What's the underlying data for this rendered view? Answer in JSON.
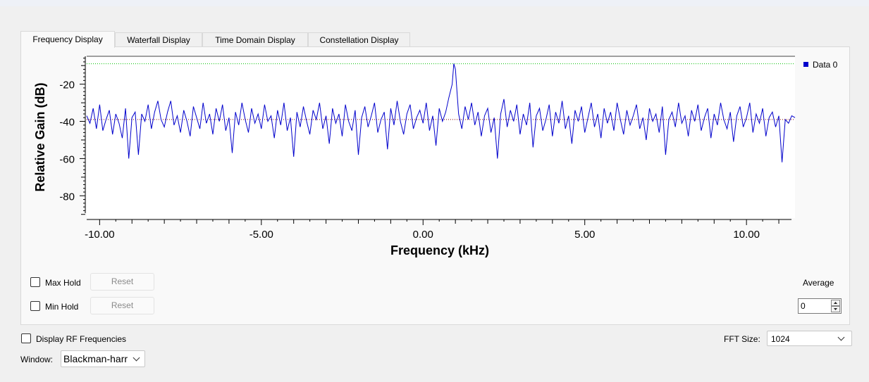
{
  "tabs": [
    {
      "label": "Frequency Display",
      "active": true
    },
    {
      "label": "Waterfall Display",
      "active": false
    },
    {
      "label": "Time Domain Display",
      "active": false
    },
    {
      "label": "Constellation Display",
      "active": false
    }
  ],
  "controls": {
    "max_hold_label": "Max Hold",
    "min_hold_label": "Min Hold",
    "reset_label": "Reset",
    "average_label": "Average",
    "average_value": "0",
    "display_rf_label": "Display RF Frequencies",
    "fft_size_label": "FFT Size:",
    "fft_size_value": "1024",
    "window_label": "Window:",
    "window_value": "Blackman-harr"
  },
  "chart_data": {
    "type": "line",
    "title": "",
    "xlabel": "Frequency (kHz)",
    "ylabel": "Relative Gain (dB)",
    "xlim": [
      -10.4,
      11.5
    ],
    "ylim": [
      -92,
      -5
    ],
    "xticks": [
      "-10.00",
      "-5.00",
      "0.00",
      "5.00",
      "10.00"
    ],
    "xtick_values": [
      -10,
      -5,
      0,
      5,
      10
    ],
    "yticks": [
      "-20",
      "-40",
      "-60",
      "-80"
    ],
    "ytick_values": [
      -20,
      -40,
      -60,
      -80
    ],
    "legend_position": "right",
    "grid": false,
    "series": [
      {
        "name": "Data 0",
        "color": "#0000cc",
        "noise_floor_db": -40,
        "noise_range_db": [
          -62,
          -28
        ],
        "peak": {
          "x": 1.0,
          "y": -9
        },
        "points": [
          [
            -10.4,
            -37
          ],
          [
            -10.3,
            -41
          ],
          [
            -10.2,
            -33
          ],
          [
            -10.1,
            -44
          ],
          [
            -10.0,
            -31
          ],
          [
            -9.9,
            -45
          ],
          [
            -9.8,
            -39
          ],
          [
            -9.7,
            -34
          ],
          [
            -9.6,
            -47
          ],
          [
            -9.5,
            -36
          ],
          [
            -9.4,
            -41
          ],
          [
            -9.3,
            -49
          ],
          [
            -9.2,
            -33
          ],
          [
            -9.1,
            -60
          ],
          [
            -9.0,
            -38
          ],
          [
            -8.9,
            -35
          ],
          [
            -8.8,
            -58
          ],
          [
            -8.7,
            -36
          ],
          [
            -8.6,
            -40
          ],
          [
            -8.5,
            -31
          ],
          [
            -8.4,
            -44
          ],
          [
            -8.3,
            -35
          ],
          [
            -8.2,
            -29
          ],
          [
            -8.1,
            -39
          ],
          [
            -8.0,
            -43
          ],
          [
            -7.9,
            -35
          ],
          [
            -7.8,
            -29
          ],
          [
            -7.7,
            -42
          ],
          [
            -7.6,
            -37
          ],
          [
            -7.5,
            -46
          ],
          [
            -7.4,
            -34
          ],
          [
            -7.3,
            -40
          ],
          [
            -7.2,
            -48
          ],
          [
            -7.1,
            -32
          ],
          [
            -7.0,
            -38
          ],
          [
            -6.9,
            -44
          ],
          [
            -6.8,
            -30
          ],
          [
            -6.7,
            -41
          ],
          [
            -6.6,
            -36
          ],
          [
            -6.5,
            -47
          ],
          [
            -6.4,
            -33
          ],
          [
            -6.3,
            -40
          ],
          [
            -6.2,
            -31
          ],
          [
            -6.1,
            -45
          ],
          [
            -6.0,
            -38
          ],
          [
            -5.9,
            -57
          ],
          [
            -5.8,
            -35
          ],
          [
            -5.7,
            -42
          ],
          [
            -5.6,
            -30
          ],
          [
            -5.5,
            -39
          ],
          [
            -5.4,
            -46
          ],
          [
            -5.3,
            -33
          ],
          [
            -5.2,
            -41
          ],
          [
            -5.1,
            -36
          ],
          [
            -5.0,
            -44
          ],
          [
            -4.9,
            -31
          ],
          [
            -4.8,
            -40
          ],
          [
            -4.7,
            -37
          ],
          [
            -4.6,
            -49
          ],
          [
            -4.5,
            -34
          ],
          [
            -4.4,
            -42
          ],
          [
            -4.3,
            -30
          ],
          [
            -4.2,
            -45
          ],
          [
            -4.1,
            -38
          ],
          [
            -4.0,
            -59
          ],
          [
            -3.9,
            -35
          ],
          [
            -3.8,
            -43
          ],
          [
            -3.7,
            -32
          ],
          [
            -3.6,
            -40
          ],
          [
            -3.5,
            -47
          ],
          [
            -3.4,
            -34
          ],
          [
            -3.3,
            -39
          ],
          [
            -3.2,
            -30
          ],
          [
            -3.1,
            -44
          ],
          [
            -3.0,
            -37
          ],
          [
            -2.9,
            -52
          ],
          [
            -2.8,
            -33
          ],
          [
            -2.7,
            -41
          ],
          [
            -2.6,
            -36
          ],
          [
            -2.5,
            -48
          ],
          [
            -2.4,
            -31
          ],
          [
            -2.3,
            -40
          ],
          [
            -2.2,
            -45
          ],
          [
            -2.1,
            -34
          ],
          [
            -2.0,
            -58
          ],
          [
            -1.9,
            -38
          ],
          [
            -1.8,
            -32
          ],
          [
            -1.7,
            -43
          ],
          [
            -1.6,
            -37
          ],
          [
            -1.5,
            -30
          ],
          [
            -1.4,
            -46
          ],
          [
            -1.3,
            -39
          ],
          [
            -1.2,
            -35
          ],
          [
            -1.1,
            -55
          ],
          [
            -1.0,
            -33
          ],
          [
            -0.9,
            -42
          ],
          [
            -0.8,
            -29
          ],
          [
            -0.7,
            -40
          ],
          [
            -0.6,
            -47
          ],
          [
            -0.5,
            -36
          ],
          [
            -0.4,
            -31
          ],
          [
            -0.3,
            -44
          ],
          [
            -0.2,
            -38
          ],
          [
            -0.1,
            -34
          ],
          [
            0.0,
            -41
          ],
          [
            0.1,
            -30
          ],
          [
            0.2,
            -45
          ],
          [
            0.3,
            -37
          ],
          [
            0.4,
            -53
          ],
          [
            0.5,
            -33
          ],
          [
            0.6,
            -40
          ],
          [
            0.7,
            -35
          ],
          [
            0.8,
            -27
          ],
          [
            0.9,
            -20
          ],
          [
            0.95,
            -9
          ],
          [
            1.0,
            -12
          ],
          [
            1.05,
            -24
          ],
          [
            1.1,
            -36
          ],
          [
            1.2,
            -44
          ],
          [
            1.3,
            -32
          ],
          [
            1.4,
            -39
          ],
          [
            1.5,
            -30
          ],
          [
            1.6,
            -42
          ],
          [
            1.7,
            -35
          ],
          [
            1.8,
            -48
          ],
          [
            1.9,
            -37
          ],
          [
            2.0,
            -33
          ],
          [
            2.1,
            -46
          ],
          [
            2.2,
            -38
          ],
          [
            2.3,
            -60
          ],
          [
            2.4,
            -36
          ],
          [
            2.5,
            -28
          ],
          [
            2.6,
            -43
          ],
          [
            2.7,
            -34
          ],
          [
            2.8,
            -40
          ],
          [
            2.9,
            -31
          ],
          [
            3.0,
            -47
          ],
          [
            3.1,
            -36
          ],
          [
            3.2,
            -42
          ],
          [
            3.3,
            -30
          ],
          [
            3.4,
            -54
          ],
          [
            3.5,
            -37
          ],
          [
            3.6,
            -33
          ],
          [
            3.7,
            -45
          ],
          [
            3.8,
            -39
          ],
          [
            3.9,
            -31
          ],
          [
            4.0,
            -48
          ],
          [
            4.1,
            -35
          ],
          [
            4.2,
            -41
          ],
          [
            4.3,
            -29
          ],
          [
            4.4,
            -44
          ],
          [
            4.5,
            -37
          ],
          [
            4.6,
            -52
          ],
          [
            4.7,
            -34
          ],
          [
            4.8,
            -40
          ],
          [
            4.9,
            -32
          ],
          [
            5.0,
            -46
          ],
          [
            5.1,
            -38
          ],
          [
            5.2,
            -30
          ],
          [
            5.3,
            -43
          ],
          [
            5.4,
            -36
          ],
          [
            5.5,
            -49
          ],
          [
            5.6,
            -33
          ],
          [
            5.7,
            -41
          ],
          [
            5.8,
            -35
          ],
          [
            5.9,
            -45
          ],
          [
            6.0,
            -30
          ],
          [
            6.1,
            -39
          ],
          [
            6.2,
            -47
          ],
          [
            6.3,
            -34
          ],
          [
            6.4,
            -42
          ],
          [
            6.5,
            -37
          ],
          [
            6.6,
            -31
          ],
          [
            6.7,
            -44
          ],
          [
            6.8,
            -38
          ],
          [
            6.9,
            -50
          ],
          [
            7.0,
            -33
          ],
          [
            7.1,
            -40
          ],
          [
            7.2,
            -36
          ],
          [
            7.3,
            -46
          ],
          [
            7.4,
            -32
          ],
          [
            7.5,
            -58
          ],
          [
            7.6,
            -39
          ],
          [
            7.7,
            -35
          ],
          [
            7.8,
            -43
          ],
          [
            7.9,
            -30
          ],
          [
            8.0,
            -41
          ],
          [
            8.1,
            -37
          ],
          [
            8.2,
            -48
          ],
          [
            8.3,
            -34
          ],
          [
            8.4,
            -40
          ],
          [
            8.5,
            -31
          ],
          [
            8.6,
            -45
          ],
          [
            8.7,
            -38
          ],
          [
            8.8,
            -33
          ],
          [
            8.9,
            -49
          ],
          [
            9.0,
            -36
          ],
          [
            9.1,
            -42
          ],
          [
            9.2,
            -30
          ],
          [
            9.3,
            -39
          ],
          [
            9.4,
            -44
          ],
          [
            9.5,
            -35
          ],
          [
            9.6,
            -51
          ],
          [
            9.7,
            -37
          ],
          [
            9.8,
            -32
          ],
          [
            9.9,
            -43
          ],
          [
            10.0,
            -38
          ],
          [
            10.1,
            -30
          ],
          [
            10.2,
            -46
          ],
          [
            10.3,
            -36
          ],
          [
            10.4,
            -41
          ],
          [
            10.5,
            -33
          ],
          [
            10.6,
            -48
          ],
          [
            10.7,
            -38
          ],
          [
            10.8,
            -35
          ],
          [
            10.9,
            -43
          ],
          [
            11.0,
            -37
          ],
          [
            11.1,
            -62
          ],
          [
            11.2,
            -39
          ],
          [
            11.3,
            -41
          ],
          [
            11.4,
            -37
          ],
          [
            11.5,
            -38
          ]
        ]
      }
    ],
    "reference_lines": [
      {
        "y": -9,
        "color": "#00c000",
        "style": "dotted"
      },
      {
        "y": -39,
        "color": "#800000",
        "style": "dotted"
      }
    ]
  }
}
